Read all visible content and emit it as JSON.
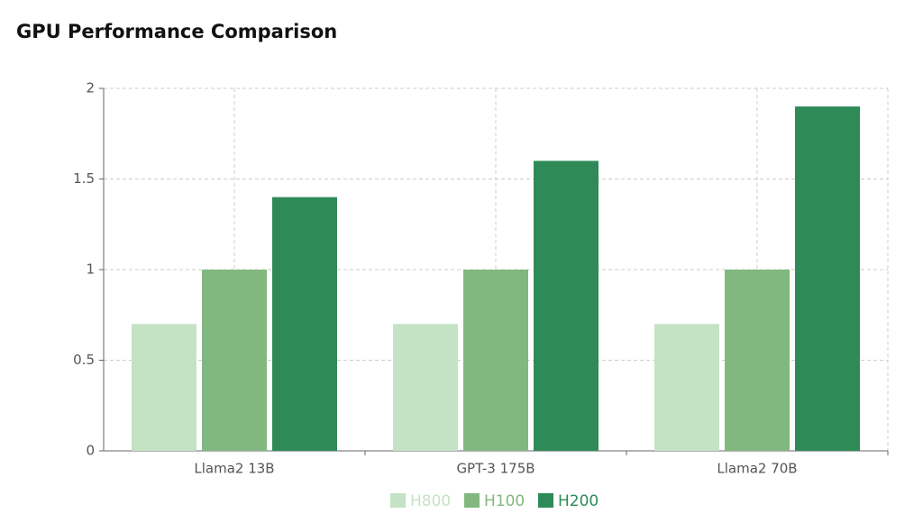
{
  "chart_data": {
    "type": "bar",
    "title": "GPU Performance Comparison",
    "categories": [
      "Llama2 13B",
      "GPT-3 175B",
      "Llama2 70B"
    ],
    "series": [
      {
        "name": "H800",
        "color": "#c4e3c4",
        "values": [
          0.7,
          0.7,
          0.7
        ]
      },
      {
        "name": "H100",
        "color": "#82b880",
        "values": [
          1,
          1,
          1
        ]
      },
      {
        "name": "H200",
        "color": "#2e8b57",
        "values": [
          1.4,
          1.6,
          1.9
        ]
      }
    ],
    "ylim": [
      0,
      2
    ],
    "yticks": [
      0,
      0.5,
      1,
      1.5,
      2
    ],
    "grid": true,
    "legend": "bottom"
  }
}
